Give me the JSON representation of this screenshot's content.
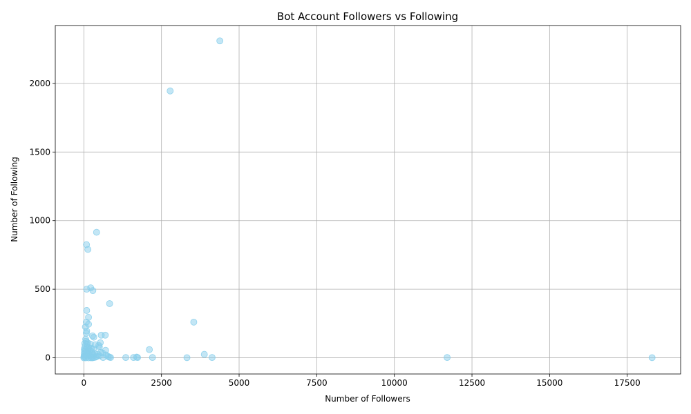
{
  "chart_data": {
    "type": "scatter",
    "title": "Bot Account Followers vs Following",
    "xlabel": "Number of Followers",
    "ylabel": "Number of Following",
    "xlim": [
      -920,
      19220
    ],
    "ylim": [
      -118,
      2422
    ],
    "xticks": [
      0,
      2500,
      5000,
      7500,
      10000,
      12500,
      15000,
      17500
    ],
    "xtick_labels": [
      "0",
      "2500",
      "5000",
      "7500",
      "10000",
      "12500",
      "15000",
      "17500"
    ],
    "yticks": [
      0,
      500,
      1000,
      1500,
      2000
    ],
    "ytick_labels": [
      "0",
      "500",
      "1000",
      "1500",
      "2000"
    ],
    "grid": true,
    "marker_color": "#87ceeb",
    "marker_edge_color": "#87ceeb",
    "marker_alpha": 0.5,
    "points": [
      {
        "x": 4380,
        "y": 2310
      },
      {
        "x": 2780,
        "y": 1945
      },
      {
        "x": 410,
        "y": 915
      },
      {
        "x": 85,
        "y": 825
      },
      {
        "x": 130,
        "y": 790
      },
      {
        "x": 90,
        "y": 500
      },
      {
        "x": 220,
        "y": 510
      },
      {
        "x": 290,
        "y": 490
      },
      {
        "x": 830,
        "y": 395
      },
      {
        "x": 90,
        "y": 345
      },
      {
        "x": 150,
        "y": 295
      },
      {
        "x": 3540,
        "y": 260
      },
      {
        "x": 80,
        "y": 260
      },
      {
        "x": 150,
        "y": 245
      },
      {
        "x": 50,
        "y": 225
      },
      {
        "x": 90,
        "y": 195
      },
      {
        "x": 80,
        "y": 180
      },
      {
        "x": 560,
        "y": 165
      },
      {
        "x": 690,
        "y": 165
      },
      {
        "x": 280,
        "y": 160
      },
      {
        "x": 320,
        "y": 150
      },
      {
        "x": 60,
        "y": 135
      },
      {
        "x": 70,
        "y": 120
      },
      {
        "x": 120,
        "y": 110
      },
      {
        "x": 530,
        "y": 110
      },
      {
        "x": 30,
        "y": 105
      },
      {
        "x": 210,
        "y": 100
      },
      {
        "x": 370,
        "y": 95
      },
      {
        "x": 480,
        "y": 90
      },
      {
        "x": 500,
        "y": 80
      },
      {
        "x": 40,
        "y": 85
      },
      {
        "x": 100,
        "y": 80
      },
      {
        "x": 160,
        "y": 75
      },
      {
        "x": 240,
        "y": 70
      },
      {
        "x": 60,
        "y": 60
      },
      {
        "x": 2110,
        "y": 60
      },
      {
        "x": 700,
        "y": 55
      },
      {
        "x": 20,
        "y": 50
      },
      {
        "x": 130,
        "y": 50
      },
      {
        "x": 260,
        "y": 45
      },
      {
        "x": 540,
        "y": 40
      },
      {
        "x": 600,
        "y": 35
      },
      {
        "x": 350,
        "y": 30
      },
      {
        "x": 10,
        "y": 30
      },
      {
        "x": 90,
        "y": 35
      },
      {
        "x": 170,
        "y": 25
      },
      {
        "x": 450,
        "y": 25
      },
      {
        "x": 3880,
        "y": 25
      },
      {
        "x": 720,
        "y": 20
      },
      {
        "x": 300,
        "y": 20
      },
      {
        "x": 40,
        "y": 20
      },
      {
        "x": 200,
        "y": 15
      },
      {
        "x": 500,
        "y": 15
      },
      {
        "x": 780,
        "y": 10
      },
      {
        "x": 820,
        "y": 5
      },
      {
        "x": 5,
        "y": 10
      },
      {
        "x": 110,
        "y": 10
      },
      {
        "x": 380,
        "y": 5
      },
      {
        "x": 860,
        "y": 2
      },
      {
        "x": 620,
        "y": 2
      },
      {
        "x": 1350,
        "y": 2
      },
      {
        "x": 1600,
        "y": 2
      },
      {
        "x": 1700,
        "y": 5
      },
      {
        "x": 1730,
        "y": 2
      },
      {
        "x": 2210,
        "y": 2
      },
      {
        "x": 3320,
        "y": 1
      },
      {
        "x": 4130,
        "y": 2
      },
      {
        "x": 11700,
        "y": 2
      },
      {
        "x": 18300,
        "y": 1
      },
      {
        "x": 0,
        "y": 0
      },
      {
        "x": 20,
        "y": 5
      },
      {
        "x": 60,
        "y": 0
      },
      {
        "x": 150,
        "y": 0
      },
      {
        "x": 230,
        "y": 0
      },
      {
        "x": 280,
        "y": 0
      },
      {
        "x": 330,
        "y": 2
      },
      {
        "x": 420,
        "y": 10
      },
      {
        "x": 250,
        "y": 5
      },
      {
        "x": 180,
        "y": 55
      },
      {
        "x": 310,
        "y": 65
      },
      {
        "x": 95,
        "y": 100
      },
      {
        "x": 15,
        "y": 65
      },
      {
        "x": 45,
        "y": 40
      },
      {
        "x": 270,
        "y": 30
      }
    ]
  }
}
